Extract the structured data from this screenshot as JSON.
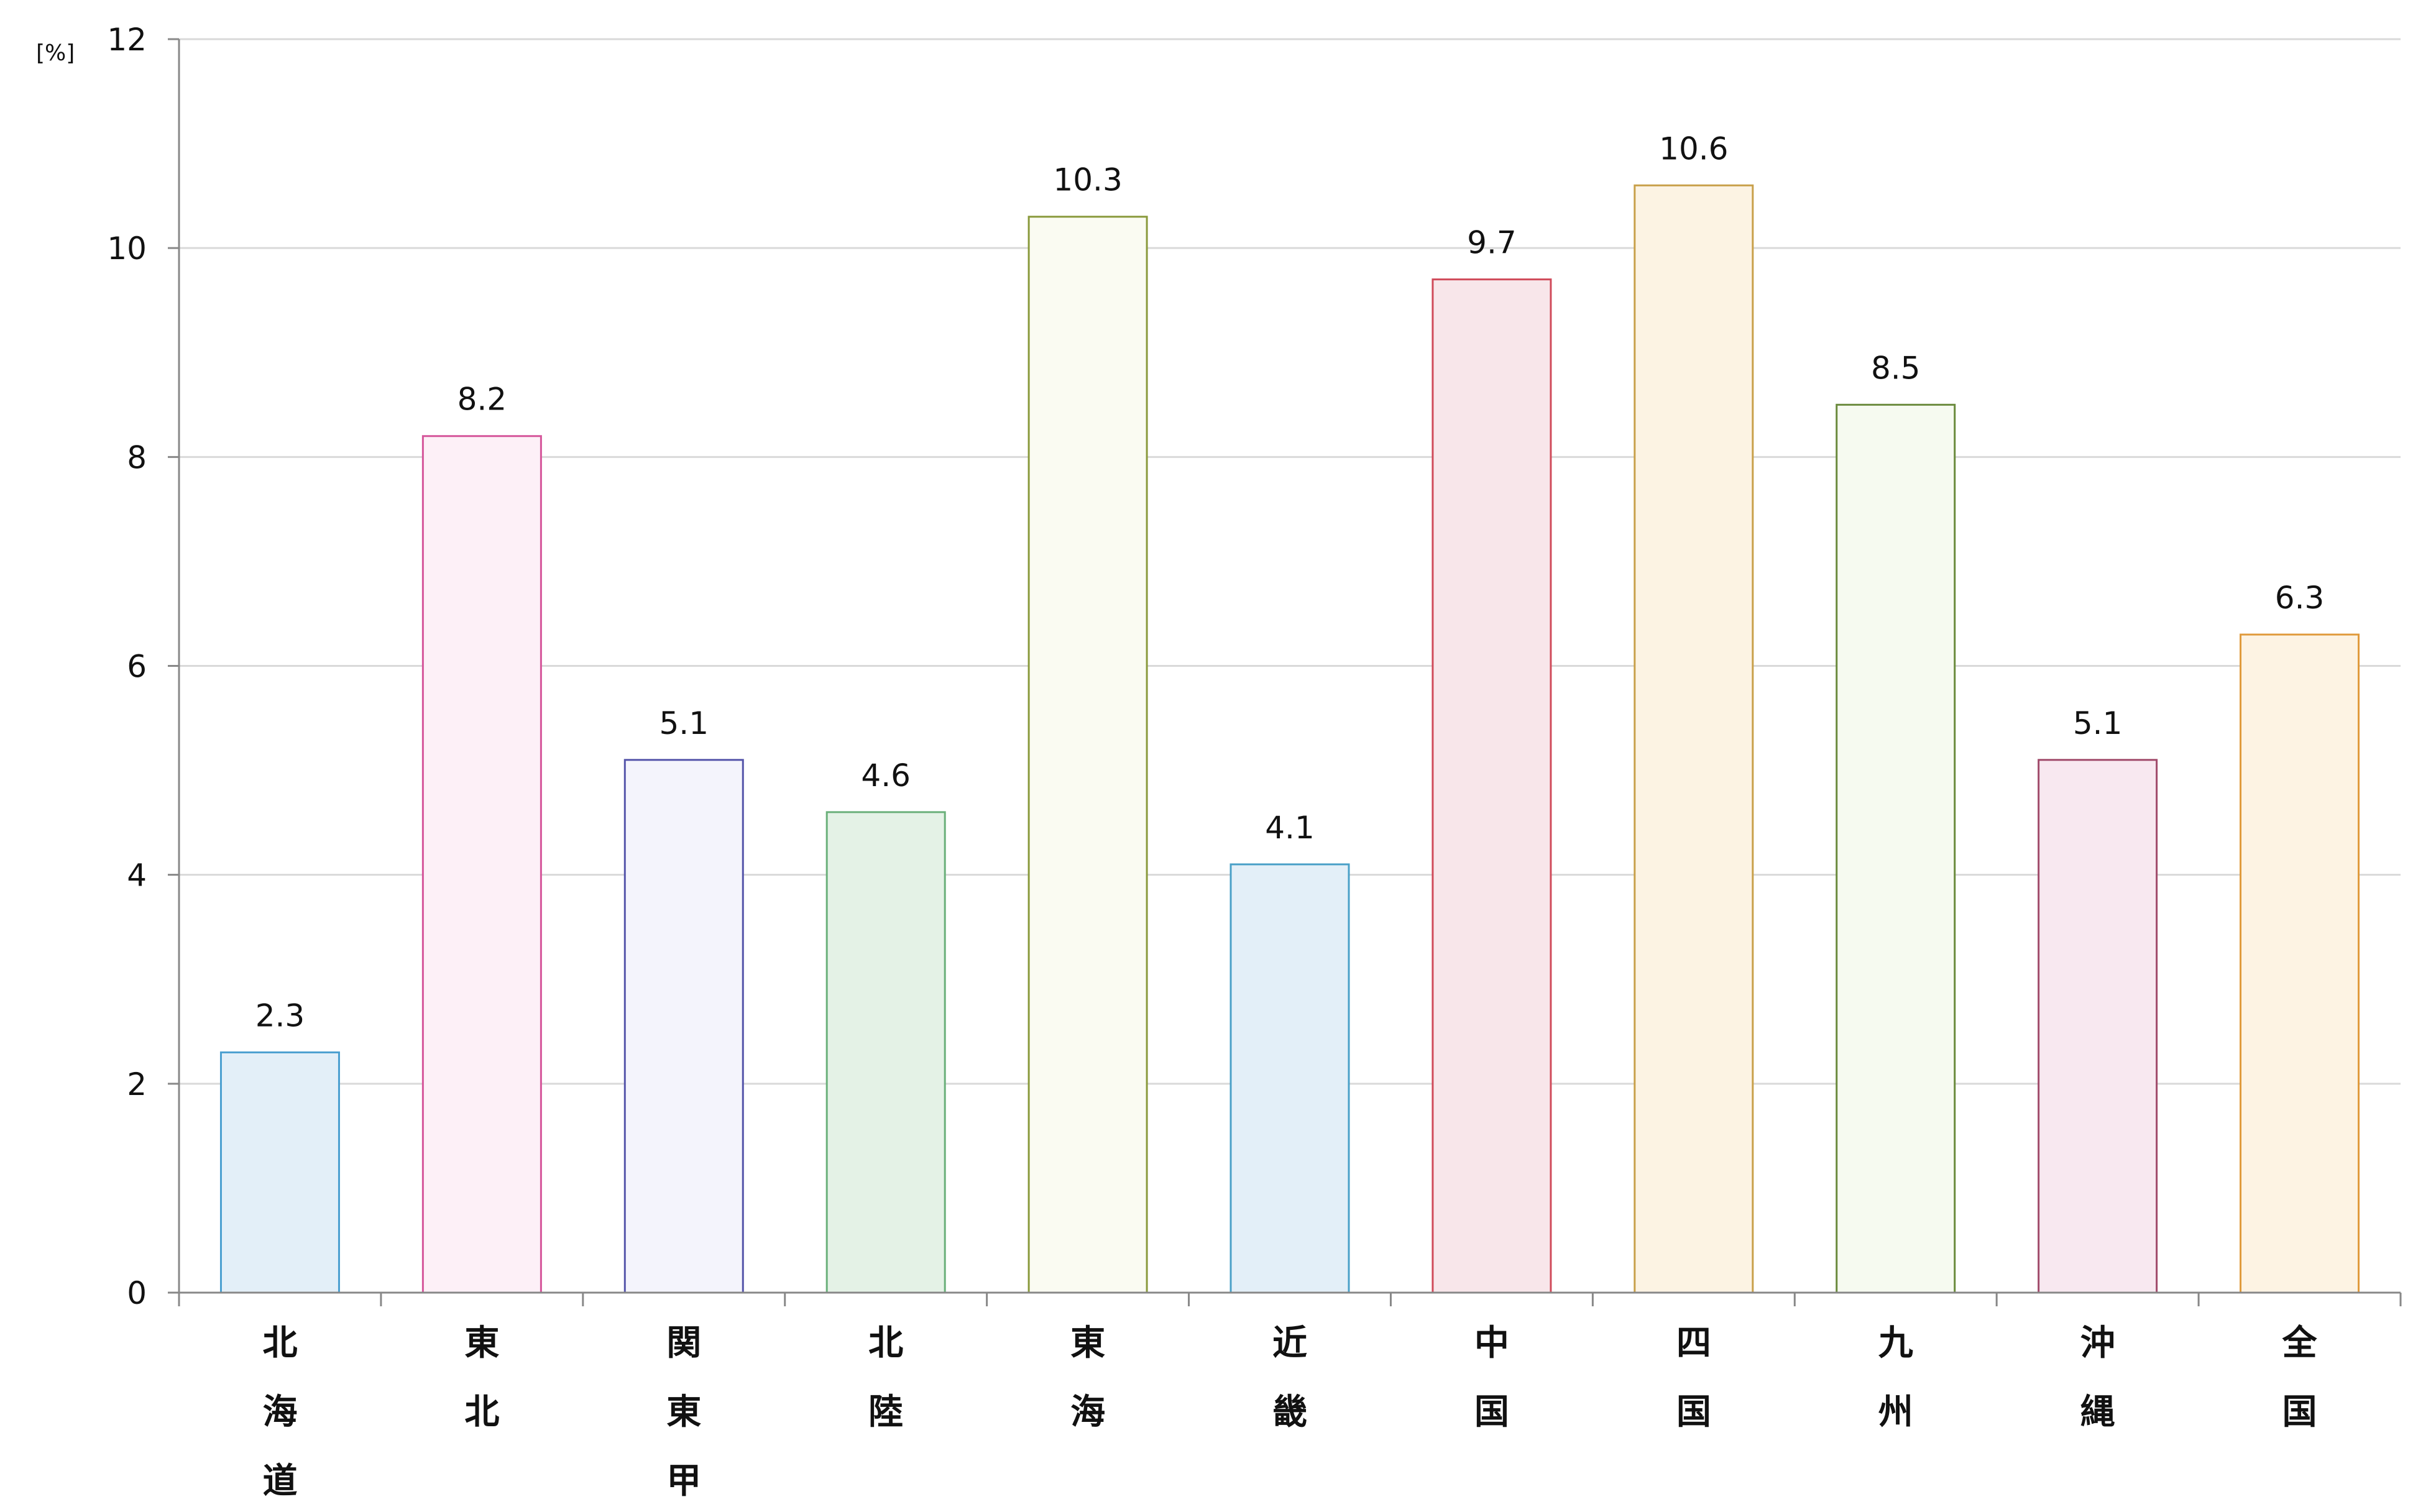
{
  "chart_data": {
    "type": "bar",
    "title": "",
    "xlabel": "",
    "ylabel": "[%]",
    "ylim": [
      0,
      12
    ],
    "yticks": [
      "0",
      "2",
      "4",
      "6",
      "8",
      "10",
      "12"
    ],
    "grid": true,
    "legend": "none",
    "categories": [
      "北海道",
      "東北",
      "関東甲信",
      "北陸",
      "東海",
      "近畿",
      "中国",
      "四国",
      "九州",
      "沖縄",
      "全国"
    ],
    "values": [
      2.3,
      8.2,
      5.1,
      4.6,
      10.3,
      4.1,
      9.7,
      10.6,
      8.5,
      5.1,
      6.3
    ],
    "data_labels": [
      "2.3",
      "8.2",
      "5.1",
      "4.6",
      "10.3",
      "4.1",
      "9.7",
      "10.6",
      "8.5",
      "5.1",
      "6.3"
    ],
    "bar_colors": [
      {
        "fill": "#e3eff8",
        "stroke": "#4a9fd0"
      },
      {
        "fill": "#fdf0f7",
        "stroke": "#d5559a"
      },
      {
        "fill": "#f4f4fc",
        "stroke": "#5555aa"
      },
      {
        "fill": "#e4f2e6",
        "stroke": "#6ab07a"
      },
      {
        "fill": "#fafbf2",
        "stroke": "#8a9a3c"
      },
      {
        "fill": "#e3eff8",
        "stroke": "#4aa0c8"
      },
      {
        "fill": "#f8e6ea",
        "stroke": "#d04a5a"
      },
      {
        "fill": "#fcf3e3",
        "stroke": "#c8a04a"
      },
      {
        "fill": "#f6faf0",
        "stroke": "#6a8a3c"
      },
      {
        "fill": "#f8e8f0",
        "stroke": "#a04a6a"
      },
      {
        "fill": "#fdf3e3",
        "stroke": "#e09a3c"
      }
    ],
    "axis_color": "#888888",
    "grid_color": "#d9d9d9"
  }
}
